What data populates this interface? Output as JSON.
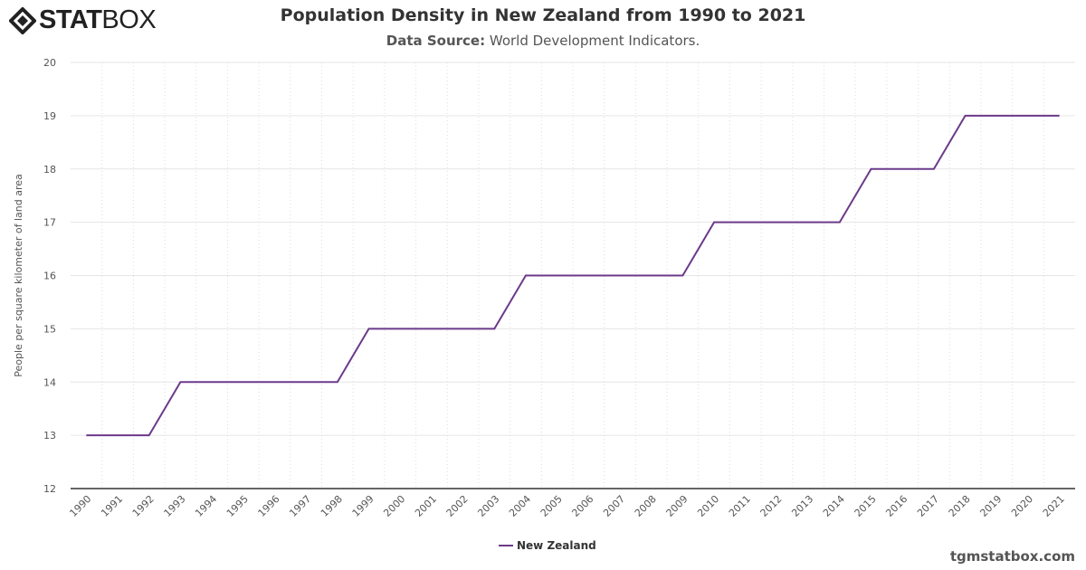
{
  "logo": {
    "text_bold": "STAT",
    "text_light": "BOX"
  },
  "header": {
    "title": "Population Density in New Zealand from 1990 to 2021",
    "source_label": "Data Source:",
    "source_value": "World Development Indicators."
  },
  "credit": "tgmstatbox.com",
  "colors": {
    "series": "#6b3a8a",
    "grid": "#e6e6e6",
    "axis": "#333333"
  },
  "chart_data": {
    "type": "line",
    "title": "Population Density in New Zealand from 1990 to 2021",
    "xlabel": "",
    "ylabel": "People per square kilometer of land area",
    "ylim": [
      12,
      20
    ],
    "yticks": [
      12,
      13,
      14,
      15,
      16,
      17,
      18,
      19,
      20
    ],
    "categories": [
      "1990",
      "1991",
      "1992",
      "1993",
      "1994",
      "1995",
      "1996",
      "1997",
      "1998",
      "1999",
      "2000",
      "2001",
      "2002",
      "2003",
      "2004",
      "2005",
      "2006",
      "2007",
      "2008",
      "2009",
      "2010",
      "2011",
      "2012",
      "2013",
      "2014",
      "2015",
      "2016",
      "2017",
      "2018",
      "2019",
      "2020",
      "2021"
    ],
    "series": [
      {
        "name": "New Zealand",
        "values": [
          13,
          13,
          13,
          14,
          14,
          14,
          14,
          14,
          14,
          15,
          15,
          15,
          15,
          15,
          16,
          16,
          16,
          16,
          16,
          16,
          17,
          17,
          17,
          17,
          17,
          18,
          18,
          18,
          19,
          19,
          19,
          19
        ]
      }
    ],
    "grid": true,
    "legend": "bottom-center"
  }
}
